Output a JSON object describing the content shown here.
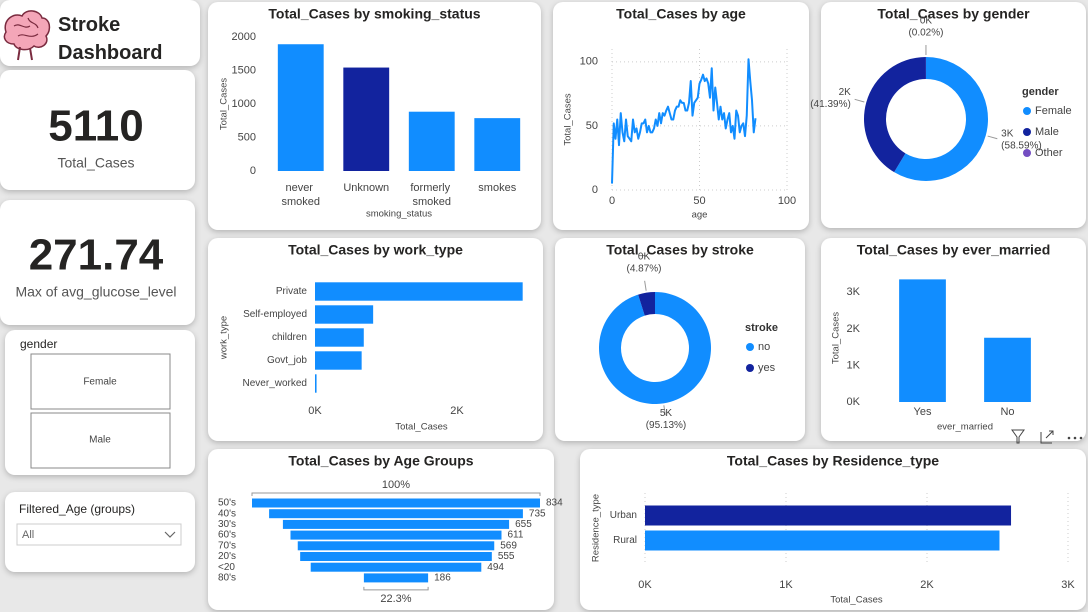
{
  "header": {
    "title": "Stroke Dashboard"
  },
  "cards": [
    {
      "value": 5110,
      "label": "Total_Cases"
    },
    {
      "value": 271.74,
      "label": "Max of avg_glucose_level"
    }
  ],
  "slicers": [
    {
      "title": "gender",
      "options": [
        "Female",
        "Male"
      ]
    },
    {
      "title": "Filtered_Age (groups)",
      "selected": "All"
    }
  ],
  "chart_data": [
    {
      "type": "bar",
      "title": "Total_Cases by smoking_status",
      "categories": [
        "never smoked",
        "Unknown",
        "formerly smoked",
        "smokes"
      ],
      "values": [
        1892,
        1544,
        885,
        789
      ],
      "colors": [
        "#118DFF",
        "#12239E",
        "#118DFF",
        "#118DFF"
      ],
      "ylim": [
        0,
        2000
      ],
      "yticks": [
        0,
        500,
        1000,
        1500,
        2000
      ],
      "x_label": "smoking_status",
      "y_label": "Total_Cases",
      "grid": false
    },
    {
      "type": "line",
      "title": "Total_Cases by age",
      "x": [
        0,
        1,
        2,
        3,
        4,
        5,
        6,
        7,
        8,
        9,
        10,
        11,
        12,
        13,
        14,
        15,
        16,
        17,
        18,
        19,
        20,
        21,
        22,
        23,
        24,
        25,
        26,
        27,
        28,
        29,
        30,
        31,
        32,
        33,
        34,
        35,
        36,
        37,
        38,
        39,
        40,
        41,
        42,
        43,
        44,
        45,
        46,
        47,
        48,
        49,
        50,
        51,
        52,
        53,
        54,
        55,
        56,
        57,
        58,
        59,
        60,
        61,
        62,
        63,
        64,
        65,
        66,
        67,
        68,
        69,
        70,
        71,
        72,
        73,
        74,
        75,
        76,
        77,
        78,
        79,
        80,
        81,
        82
      ],
      "values": [
        5,
        52,
        40,
        55,
        35,
        60,
        45,
        38,
        55,
        42,
        40,
        38,
        55,
        45,
        48,
        40,
        45,
        52,
        52,
        55,
        45,
        50,
        45,
        45,
        48,
        55,
        50,
        60,
        52,
        60,
        58,
        62,
        65,
        60,
        55,
        55,
        62,
        65,
        65,
        70,
        68,
        68,
        62,
        62,
        68,
        85,
        58,
        68,
        70,
        72,
        83,
        86,
        90,
        85,
        87,
        83,
        72,
        95,
        62,
        80,
        68,
        55,
        65,
        55,
        60,
        48,
        55,
        60,
        45,
        50,
        40,
        62,
        58,
        45,
        50,
        52,
        42,
        58,
        102,
        85,
        70,
        45,
        56
      ],
      "color": "#118DFF",
      "xlim": [
        0,
        100
      ],
      "xticks": [
        0,
        50,
        100
      ],
      "ylim": [
        0,
        110
      ],
      "yticks": [
        0,
        50,
        100
      ],
      "x_label": "age",
      "y_label": "Total_Cases",
      "grid": true
    },
    {
      "type": "donut",
      "title": "Total_Cases by gender",
      "categories": [
        "Female",
        "Male",
        "Other"
      ],
      "values": [
        2994,
        2115,
        1
      ],
      "value_labels": [
        "3K",
        "2K",
        "0K"
      ],
      "percent_labels": [
        "(58.59%)",
        "(41.39%)",
        "(0.02%)"
      ],
      "colors": [
        "#118DFF",
        "#12239E",
        "#744EC2"
      ],
      "legend_title": "gender"
    },
    {
      "type": "hbar",
      "title": "Total_Cases by work_type",
      "categories": [
        "Private",
        "Self-employed",
        "children",
        "Govt_job",
        "Never_worked"
      ],
      "values": [
        2925,
        819,
        687,
        657,
        22
      ],
      "colors": [
        "#118DFF",
        "#118DFF",
        "#118DFF",
        "#118DFF",
        "#118DFF"
      ],
      "xlim": [
        0,
        3000
      ],
      "xticks": [
        {
          "value": 0,
          "label": "0K"
        },
        {
          "value": 2000,
          "label": "2K"
        }
      ],
      "x_label": "Total_Cases",
      "y_label": "work_type",
      "grid": false
    },
    {
      "type": "donut",
      "title": "Total_Cases by stroke",
      "categories": [
        "no",
        "yes"
      ],
      "values": [
        4861,
        249
      ],
      "value_labels": [
        "5K",
        "0K"
      ],
      "percent_labels": [
        "(95.13%)",
        "(4.87%)"
      ],
      "colors": [
        "#118DFF",
        "#12239E"
      ],
      "legend_title": "stroke"
    },
    {
      "type": "bar",
      "title": "Total_Cases by ever_married",
      "categories": [
        "Yes",
        "No"
      ],
      "values": [
        3353,
        1757
      ],
      "colors": [
        "#118DFF",
        "#118DFF"
      ],
      "ylim": [
        0,
        3500
      ],
      "yticks": [
        {
          "value": 0,
          "label": "0K"
        },
        {
          "value": 1000,
          "label": "1K"
        },
        {
          "value": 2000,
          "label": "2K"
        },
        {
          "value": 3000,
          "label": "3K"
        }
      ],
      "x_label": "ever_married",
      "y_label": "Total_Cases",
      "grid": false
    },
    {
      "type": "funnel",
      "title": "Total_Cases by Age Groups",
      "categories": [
        "50's",
        "40's",
        "30's",
        "60's",
        "70's",
        "20's",
        "<20",
        "80's"
      ],
      "values": [
        834,
        735,
        655,
        611,
        569,
        555,
        494,
        186
      ],
      "color": "#118DFF",
      "first_percent_label": "100%",
      "last_percent_label": "22.3%"
    },
    {
      "type": "hbar",
      "title": "Total_Cases by Residence_type",
      "categories": [
        "Urban",
        "Rural"
      ],
      "values": [
        2596,
        2514
      ],
      "colors": [
        "#12239E",
        "#118DFF"
      ],
      "xlim": [
        0,
        3000
      ],
      "xticks": [
        {
          "value": 0,
          "label": "0K"
        },
        {
          "value": 1000,
          "label": "1K"
        },
        {
          "value": 2000,
          "label": "2K"
        },
        {
          "value": 3000,
          "label": "3K"
        }
      ],
      "x_label": "Total_Cases",
      "y_label": "Residence_type",
      "grid": true
    }
  ]
}
